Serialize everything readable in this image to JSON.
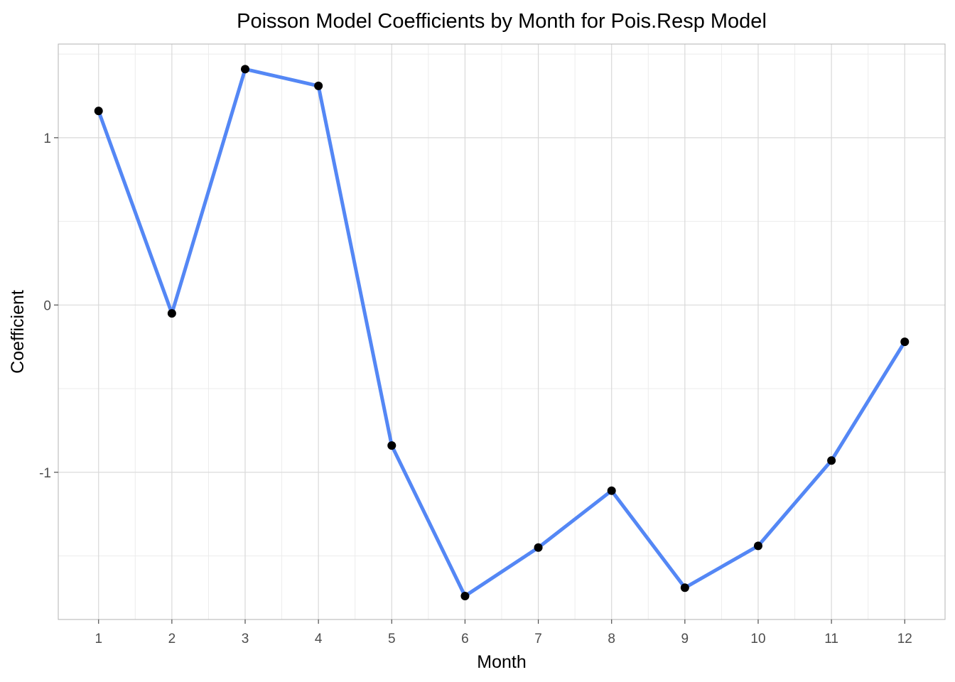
{
  "chart_data": {
    "type": "line",
    "title": "Poisson Model Coefficients by Month for Pois.Resp Model",
    "xlabel": "Month",
    "ylabel": "Coefficient",
    "x": [
      1,
      2,
      3,
      4,
      5,
      6,
      7,
      8,
      9,
      10,
      11,
      12
    ],
    "x_tick_labels": [
      "1",
      "2",
      "3",
      "4",
      "5",
      "6",
      "7",
      "8",
      "9",
      "10",
      "11",
      "12"
    ],
    "y": [
      1.16,
      -0.05,
      1.41,
      1.31,
      -0.84,
      -1.74,
      -1.45,
      -1.11,
      -1.69,
      -1.44,
      -0.93,
      -0.22
    ],
    "y_ticks": [
      -1,
      0,
      1
    ],
    "y_tick_labels": [
      "-1",
      "0",
      "1"
    ],
    "xlim": [
      0.45,
      12.55
    ],
    "ylim": [
      -1.88,
      1.56
    ],
    "grid": true,
    "colors": {
      "line": "#5487f5",
      "points": "#000000",
      "grid_major": "#d9d9d9",
      "grid_minor": "#ececec",
      "border": "#b3b3b3"
    }
  }
}
